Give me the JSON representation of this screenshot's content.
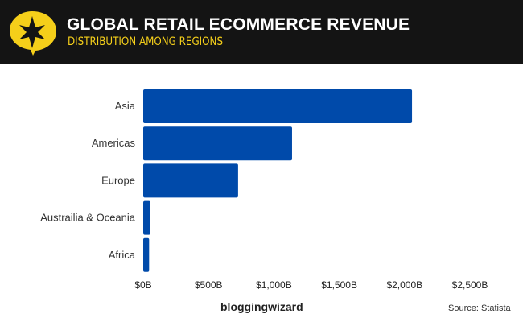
{
  "header": {
    "title": "GLOBAL RETAIL ECOMMERCE REVENUE",
    "subtitle": "DISTRIBUTION AMONG REGIONS"
  },
  "footer": {
    "brand": "bloggingwizard",
    "source": "Source: Statista"
  },
  "colors": {
    "bar": "#004AAA",
    "header_bg": "#141414",
    "accent": "#F5CF1A"
  },
  "chart_data": {
    "type": "bar",
    "orientation": "horizontal",
    "title": "GLOBAL RETAIL ECOMMERCE REVENUE",
    "subtitle": "DISTRIBUTION AMONG REGIONS",
    "categories": [
      "Asia",
      "Americas",
      "Europe",
      "Austrailia & Oceania",
      "Africa"
    ],
    "values": [
      2057,
      1139,
      726,
      54,
      45
    ],
    "unit": "$B",
    "xlim": [
      0,
      2500
    ],
    "xticks": [
      0,
      500,
      1000,
      1500,
      2000,
      2500
    ],
    "xtick_labels": [
      "$0B",
      "$500B",
      "$1,000B",
      "$1,500B",
      "$2,000B",
      "$2,500B"
    ],
    "grid": false,
    "xlabel": "",
    "ylabel": ""
  }
}
